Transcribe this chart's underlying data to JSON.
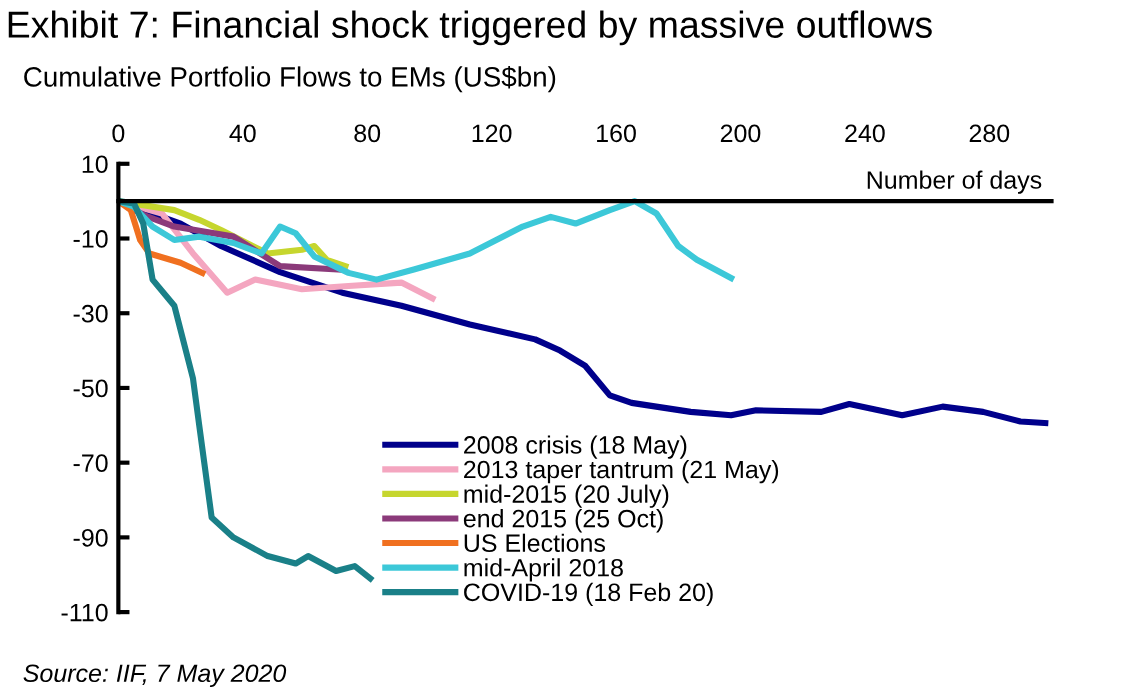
{
  "chart_data": {
    "type": "line",
    "title": "Exhibit 7: Financial shock triggered by massive outflows",
    "subtitle": "Cumulative Portfolio Flows to EMs (US$bn)",
    "xlabel": "Number of days",
    "annotations": [
      "Source: IIF, 7 May 2020"
    ],
    "xlim": [
      0,
      300
    ],
    "xticks": [
      0,
      40,
      80,
      120,
      160,
      200,
      240,
      280
    ],
    "ylim": [
      -110,
      10
    ],
    "yticks": [
      10,
      -10,
      -30,
      -50,
      -70,
      -90,
      -110
    ],
    "grid": false,
    "legend": "bottom",
    "marker": "none",
    "line_style": "solid",
    "series": [
      {
        "name": "2008 crisis (18 May)",
        "color": "#00008b",
        "x": [
          0,
          20,
          33,
          52,
          72,
          91,
          113,
          134,
          142,
          150,
          158,
          165,
          184,
          197,
          205,
          226,
          235,
          252,
          265,
          278,
          290,
          298
        ],
        "values": [
          0,
          -6,
          -12,
          -19,
          -24.5,
          -28,
          -33,
          -37,
          -40,
          -44,
          -52,
          -54,
          -56.4,
          -57.3,
          -56,
          -56.4,
          -54.3,
          -57.3,
          -55,
          -56.4,
          -59,
          -59.4
        ]
      },
      {
        "name": "2013 taper tantrum (21 May)",
        "color": "#f4a6c0",
        "x": [
          0,
          14,
          24,
          35,
          44,
          59,
          74,
          91,
          101
        ],
        "values": [
          0,
          -3.3,
          -14,
          -24.5,
          -21,
          -23.6,
          -22.7,
          -21.8,
          -26
        ]
      },
      {
        "name": "mid-2015 (20 July)",
        "color": "#c6d62e",
        "x": [
          0,
          18,
          26,
          33,
          48,
          59,
          63,
          67,
          73
        ],
        "values": [
          0,
          -2.4,
          -5,
          -7.7,
          -14,
          -13,
          -12,
          -15.7,
          -17.4
        ]
      },
      {
        "name": "end 2015 (25 Oct)",
        "color": "#8b3a7a",
        "x": [
          0,
          9,
          18,
          37,
          52,
          71
        ],
        "values": [
          0,
          -4,
          -6.8,
          -9.5,
          -17.4,
          -18.3
        ]
      },
      {
        "name": "US Elections",
        "color": "#f07020",
        "x": [
          0,
          4,
          7,
          10,
          20,
          27
        ],
        "values": [
          0,
          -2.4,
          -10.4,
          -14,
          -16.5,
          -19.2
        ]
      },
      {
        "name": "mid-April 2018",
        "color": "#3cc8d8",
        "x": [
          0,
          5,
          11,
          18,
          26,
          37,
          46,
          52,
          57,
          63,
          74,
          83,
          95,
          113,
          130,
          139,
          147,
          158,
          166,
          173,
          180,
          186,
          197
        ],
        "values": [
          0,
          -1.5,
          -6.8,
          -10.4,
          -9.5,
          -11.2,
          -14,
          -6.8,
          -8.6,
          -14.8,
          -19.2,
          -21,
          -18.3,
          -14,
          -6.8,
          -4.2,
          -6,
          -2.4,
          0,
          -3.3,
          -12,
          -15.7,
          -20.6
        ]
      },
      {
        "name": "COVID-19 (18 Feb 20)",
        "color": "#1a8088",
        "x": [
          0,
          5,
          8,
          11,
          18,
          24,
          26,
          30,
          37,
          48,
          57,
          61,
          70,
          76,
          81
        ],
        "values": [
          0,
          -0.6,
          -6,
          -21,
          -28,
          -47.5,
          -60,
          -84.7,
          -90,
          -95,
          -97,
          -95,
          -99,
          -97.7,
          -101
        ]
      }
    ]
  }
}
